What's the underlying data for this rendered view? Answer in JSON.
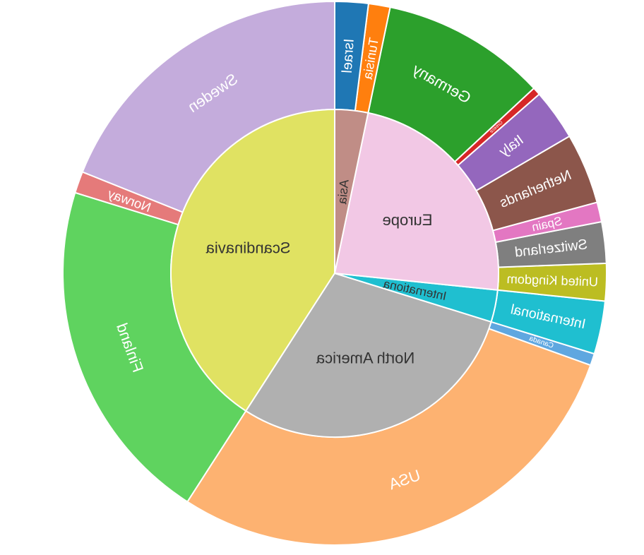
{
  "chart_data": {
    "type": "sunburst",
    "mirrored": true,
    "inner": [
      {
        "label": "Scandinavia",
        "value": 35.0,
        "color": "#e0e262",
        "text_color": "#333333"
      },
      {
        "label": "North America",
        "value": 25.1,
        "color": "#b0b0b0",
        "text_color": "#333333"
      },
      {
        "label": "Internationa",
        "value": 2.7,
        "color": "#1fbfd0",
        "text_color": "#333333"
      },
      {
        "label": "Europe",
        "value": 20.0,
        "color": "#f2c8e5",
        "text_color": "#333333"
      },
      {
        "label": "Asia",
        "value": 2.8,
        "color": "#c08d86",
        "text_color": "#333333"
      }
    ],
    "outer": [
      {
        "label": "Sweden",
        "parent": "Scandinavia",
        "value": 16.2,
        "color": "#c4acdc",
        "text_color": "#ffffff"
      },
      {
        "label": "Norway",
        "parent": "Scandinavia",
        "value": 1.1,
        "color": "#e57a7a",
        "text_color": "#ffffff"
      },
      {
        "label": "Finland",
        "parent": "Scandinavia",
        "value": 17.7,
        "color": "#5fd35f",
        "text_color": "#ffffff"
      },
      {
        "label": "USA",
        "parent": "North America",
        "value": 24.5,
        "color": "#fdb271",
        "text_color": "#ffffff"
      },
      {
        "label": "Canada",
        "parent": "North America",
        "value": 0.6,
        "color": "#5fa7e0",
        "text_color": "#ffffff"
      },
      {
        "label": "International",
        "parent": "Internationa",
        "value": 2.7,
        "color": "#1fbfd0",
        "text_color": "#ffffff"
      },
      {
        "label": "United Kingdom",
        "parent": "Europe",
        "value": 1.9,
        "color": "#bcbd22",
        "text_color": "#ffffff"
      },
      {
        "label": "Switzerland",
        "parent": "Europe",
        "value": 2.1,
        "color": "#7f7f7f",
        "text_color": "#ffffff"
      },
      {
        "label": "Spain",
        "parent": "Europe",
        "value": 1.0,
        "color": "#e377c2",
        "text_color": "#ffffff"
      },
      {
        "label": "Netherlands",
        "parent": "Europe",
        "value": 3.6,
        "color": "#8c564b",
        "text_color": "#ffffff"
      },
      {
        "label": "Italy",
        "parent": "Europe",
        "value": 2.6,
        "color": "#9467bd",
        "text_color": "#ffffff"
      },
      {
        "label": "Greece",
        "parent": "Europe",
        "value": 0.4,
        "color": "#d62728",
        "text_color": "#ffffff"
      },
      {
        "label": "Germany",
        "parent": "Europe",
        "value": 8.4,
        "color": "#2ca02c",
        "text_color": "#ffffff"
      },
      {
        "label": "Tunisia",
        "parent": "Asia",
        "value": 1.1,
        "color": "#ff7f0e",
        "text_color": "#ffffff"
      },
      {
        "label": "Israel",
        "parent": "Asia",
        "value": 1.7,
        "color": "#1f77b4",
        "text_color": "#ffffff"
      }
    ]
  }
}
